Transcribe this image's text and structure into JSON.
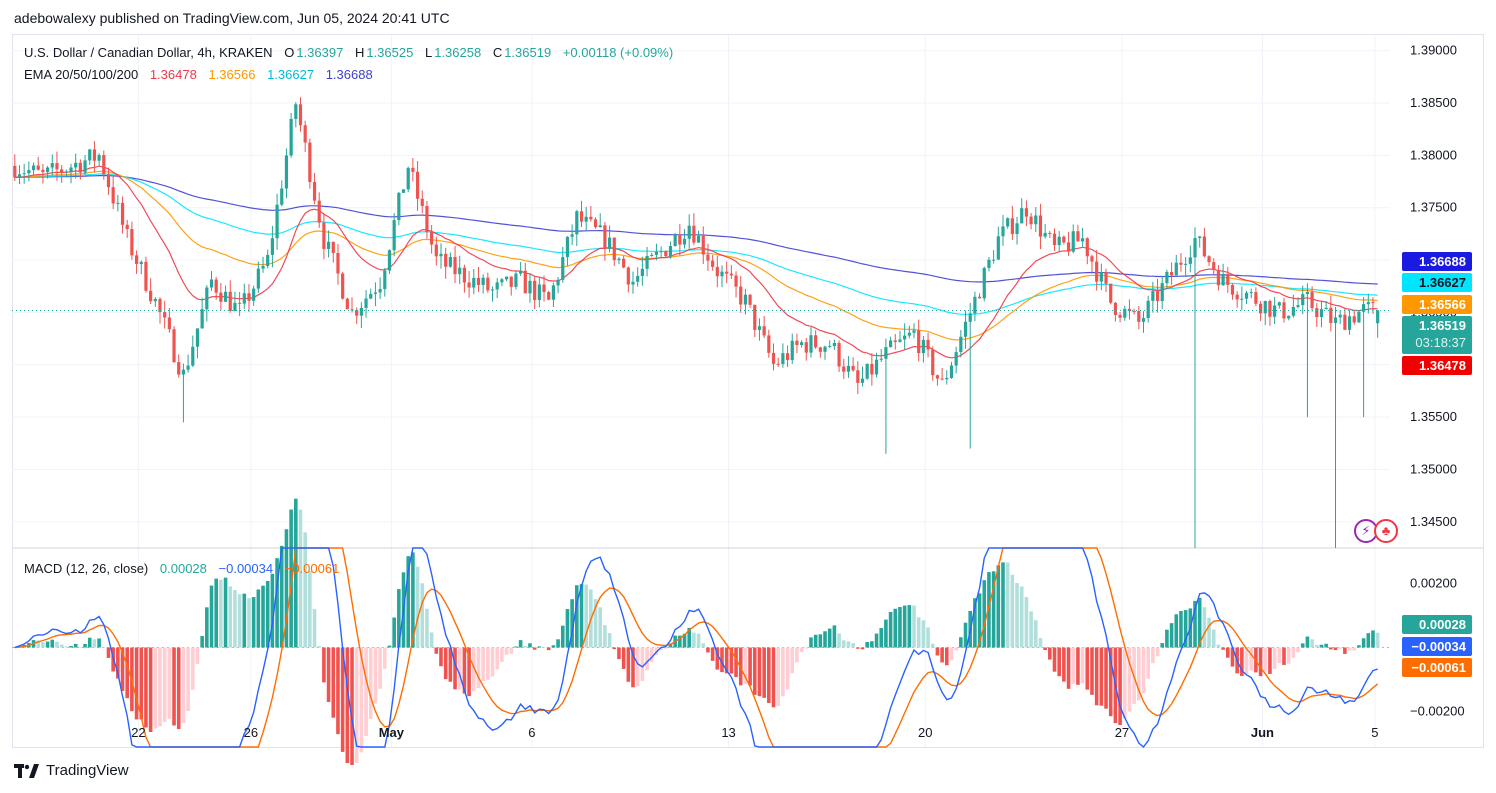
{
  "publish_line": "adebowalexy published on TradingView.com, Jun 05, 2024 20:41 UTC",
  "legend_main": {
    "symbol": "U.S. Dollar / Canadian Dollar, 4h, KRAKEN",
    "o_label": "O",
    "o_value": "1.36397",
    "h_label": "H",
    "h_value": "1.36525",
    "l_label": "L",
    "l_value": "1.36258",
    "c_label": "C",
    "c_value": "1.36519",
    "change": "+0.00118 (+0.09%)"
  },
  "legend_ema": {
    "label": "EMA 20/50/100/200",
    "ema20": "1.36478",
    "ema50": "1.36566",
    "ema100": "1.36627",
    "ema200": "1.36688"
  },
  "legend_macd": {
    "label": "MACD (12, 26, close)",
    "hist": "0.00028",
    "macd": "−0.00034",
    "signal": "−0.00061"
  },
  "price_tags": {
    "ema200": "1.36688",
    "ema100": "1.36627",
    "ema50": "1.36566",
    "last": "1.36519",
    "countdown": "03:18:37",
    "ema20": "1.36478"
  },
  "macd_tags": {
    "hist": "0.00028",
    "macd": "−0.00034",
    "signal": "−0.00061"
  },
  "footer": {
    "brand": "TradingView"
  },
  "colors": {
    "up": "#26a69a",
    "down": "#ef5350",
    "ema20": "#f23645",
    "ema50": "#ff9800",
    "ema100": "#00e5ff",
    "ema200": "#3f3fd4",
    "macd": "#2962ff",
    "signal": "#ff6d00"
  },
  "chart_data": [
    {
      "type": "candlestick",
      "title": "U.S. Dollar / Canadian Dollar, 4h, KRAKEN",
      "ylim": [
        1.3425,
        1.3915
      ],
      "y_ticks": [
        "1.39000",
        "1.38500",
        "1.38000",
        "1.37500",
        "1.37000",
        "1.36500",
        "1.36000",
        "1.35500",
        "1.35000",
        "1.34500"
      ],
      "x_ticks": [
        "22",
        "26",
        "May",
        "6",
        "13",
        "20",
        "27",
        "Jun",
        "5"
      ],
      "anchors": [
        {
          "x": "Apr 18",
          "y": 1.379
        },
        {
          "x": "Apr 19",
          "y": 1.378
        },
        {
          "x": "Apr 21",
          "y": 1.38
        },
        {
          "x": "Apr 22",
          "y": 1.372
        },
        {
          "x": "Apr 23",
          "y": 1.366
        },
        {
          "x": "Apr 24",
          "y": 1.359
        },
        {
          "x": "Apr 25",
          "y": 1.368
        },
        {
          "x": "Apr 26",
          "y": 1.365
        },
        {
          "x": "Apr 27",
          "y": 1.37
        },
        {
          "x": "Apr 28",
          "y": 1.385
        },
        {
          "x": "Apr 29",
          "y": 1.372
        },
        {
          "x": "Apr 30",
          "y": 1.365
        },
        {
          "x": "May 1",
          "y": 1.368
        },
        {
          "x": "May 2",
          "y": 1.379
        },
        {
          "x": "May 3",
          "y": 1.37
        },
        {
          "x": "May 5",
          "y": 1.367
        },
        {
          "x": "May 6",
          "y": 1.368
        },
        {
          "x": "May 7",
          "y": 1.366
        },
        {
          "x": "May 8",
          "y": 1.374
        },
        {
          "x": "May 9",
          "y": 1.372
        },
        {
          "x": "May 10",
          "y": 1.368
        },
        {
          "x": "May 12",
          "y": 1.3735
        },
        {
          "x": "May 13",
          "y": 1.369
        },
        {
          "x": "May 14",
          "y": 1.366
        },
        {
          "x": "May 15",
          "y": 1.36
        },
        {
          "x": "May 16",
          "y": 1.362
        },
        {
          "x": "May 17",
          "y": 1.362
        },
        {
          "x": "May 18",
          "y": 1.358
        },
        {
          "x": "May 19",
          "y": 1.361
        },
        {
          "x": "May 20",
          "y": 1.363
        },
        {
          "x": "May 21",
          "y": 1.358
        },
        {
          "x": "May 22",
          "y": 1.365
        },
        {
          "x": "May 23",
          "y": 1.372
        },
        {
          "x": "May 24",
          "y": 1.375
        },
        {
          "x": "May 25",
          "y": 1.371
        },
        {
          "x": "May 26",
          "y": 1.372
        },
        {
          "x": "May 27",
          "y": 1.366
        },
        {
          "x": "May 28",
          "y": 1.364
        },
        {
          "x": "May 29",
          "y": 1.368
        },
        {
          "x": "May 30",
          "y": 1.372
        },
        {
          "x": "May 31",
          "y": 1.368
        },
        {
          "x": "Jun 2",
          "y": 1.365
        },
        {
          "x": "Jun 3",
          "y": 1.366
        },
        {
          "x": "Jun 4",
          "y": 1.364
        },
        {
          "x": "Jun 5",
          "y": 1.3652
        }
      ],
      "series": [
        {
          "name": "EMA 20",
          "last": 1.36478
        },
        {
          "name": "EMA 50",
          "last": 1.36566
        },
        {
          "name": "EMA 100",
          "last": 1.36627
        },
        {
          "name": "EMA 200",
          "last": 1.36688
        }
      ],
      "last_close": 1.36519
    },
    {
      "type": "line",
      "title": "MACD (12, 26, close)",
      "ylim": [
        -0.0031,
        0.0031
      ],
      "y_ticks": [
        "0.00200",
        "−0.00200"
      ],
      "series": [
        {
          "name": "MACD",
          "last": -0.00034
        },
        {
          "name": "Signal",
          "last": -0.00061
        },
        {
          "name": "Histogram",
          "last": 0.00028
        }
      ]
    }
  ]
}
